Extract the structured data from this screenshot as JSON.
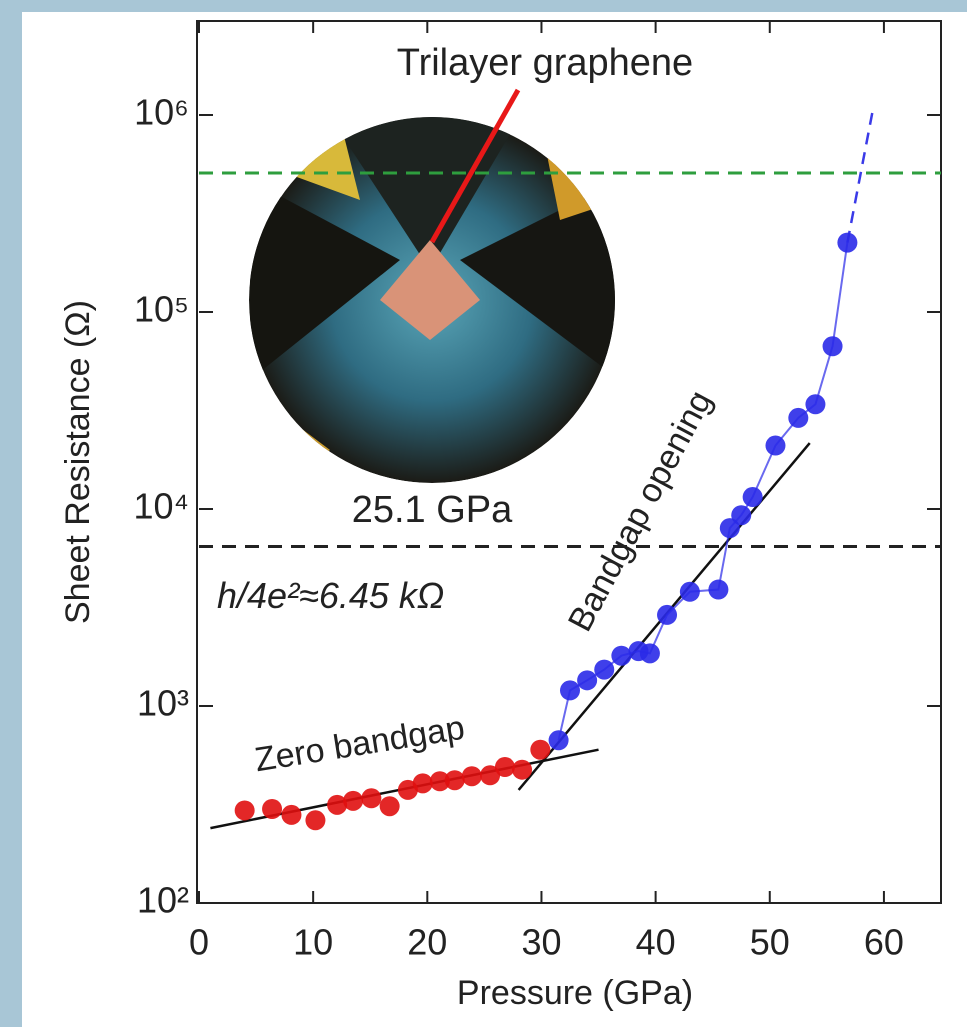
{
  "chart_data": {
    "type": "scatter",
    "x_label": "Pressure (GPa)",
    "y_label": "Sheet Resistance (Ω)",
    "log_y": true,
    "xlim": [
      0,
      65
    ],
    "xticks": [
      0,
      10,
      20,
      30,
      40,
      50,
      60
    ],
    "ylim": [
      100,
      3000000
    ],
    "yticks": [
      {
        "value": 100,
        "label": "10²"
      },
      {
        "value": 1000,
        "label": "10³"
      },
      {
        "value": 10000,
        "label": "10⁴"
      },
      {
        "value": 100000,
        "label": "10⁵"
      },
      {
        "value": 1000000,
        "label": "10⁶"
      }
    ],
    "series": [
      {
        "name": "Zero bandgap",
        "color": "#e01010",
        "x": [
          4.0,
          6.4,
          8.1,
          10.2,
          12.1,
          13.5,
          15.1,
          16.7,
          18.3,
          19.6,
          21.1,
          22.4,
          23.9,
          25.5,
          26.8,
          28.3,
          29.9
        ],
        "values": [
          295,
          300,
          280,
          263,
          315,
          330,
          340,
          310,
          375,
          405,
          415,
          420,
          440,
          445,
          490,
          475,
          600
        ]
      },
      {
        "name": "Bandgap opening",
        "color": "#2a2ae8",
        "x": [
          31.5,
          32.5,
          34,
          35.5,
          37,
          38.5,
          39.5,
          41,
          43,
          45.5,
          46.5,
          47.5,
          48.5,
          50.5,
          52.5,
          54,
          55.5,
          56.8
        ],
        "values": [
          670,
          1200,
          1350,
          1530,
          1800,
          1900,
          1850,
          2900,
          3800,
          3900,
          8000,
          9300,
          11500,
          21000,
          29000,
          34000,
          67000,
          225000
        ]
      }
    ],
    "fit_lines": [
      {
        "color": "#111111",
        "x": [
          1,
          35
        ],
        "values": [
          240,
          600
        ]
      },
      {
        "color": "#111111",
        "x": [
          28,
          53.5
        ],
        "values": [
          375,
          21600
        ]
      },
      {
        "color": "#3a3ae8",
        "dashed": true,
        "x": [
          56.8,
          59
        ],
        "values": [
          225000,
          1040000
        ]
      }
    ],
    "reference_lines": [
      {
        "value": 508000,
        "color": "#2e9e3e"
      },
      {
        "value": 6450,
        "color": "#222222",
        "label": "h/4e²≈6.45 kΩ"
      }
    ],
    "inset_caption": "25.1 GPa",
    "inset_pointer_label": "Trilayer graphene"
  }
}
